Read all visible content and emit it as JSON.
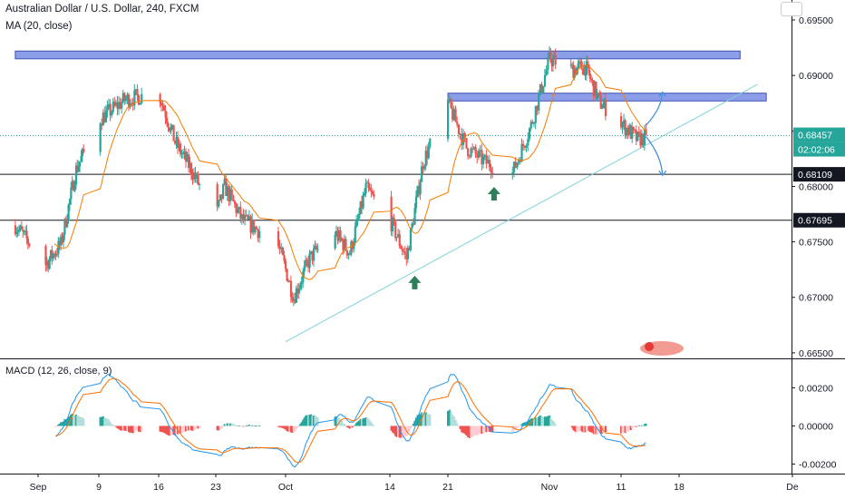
{
  "header": {
    "title": "Australian Dollar / U.S. Dollar, 240, FXCM",
    "ma_label": "MA (20, close)",
    "macd_label": "MACD (12, 26, close, 9)"
  },
  "price_badges": {
    "last_price": "0.68457",
    "countdown": "02:02:06",
    "level_upper": "0.68109",
    "level_lower": "0.67695"
  },
  "colors": {
    "up": "#26a69a",
    "down": "#ef5350",
    "ma": "#f57c00",
    "macd_line": "#2196f3",
    "signal_line": "#ff6d00",
    "trendline": "#7fd3d6",
    "zone_fill": "#8c9ee8",
    "zone_border": "#3f51b5",
    "arrow_up": "#2e7d5b",
    "projection": "#4a90d9",
    "badge_dark": "#131722",
    "badge_last": "#26a69a"
  },
  "chart_data": [
    {
      "type": "candlestick",
      "title": "Australian Dollar / U.S. Dollar, 240, FXCM",
      "x_tick_labels": [
        "Sep",
        "9",
        "16",
        "23",
        "Oct",
        "14",
        "21",
        "Nov",
        "11",
        "18",
        "De"
      ],
      "y_tick_labels": [
        "0.69500",
        "0.69000",
        "0.68500",
        "0.68000",
        "0.67500",
        "0.67000",
        "0.66500"
      ],
      "ylim": [
        0.6645,
        0.6968
      ],
      "anchors": [
        [
          "Aug 29",
          0.6765
        ],
        [
          "Sep 2",
          0.673
        ],
        [
          "Sep 4",
          0.6748
        ],
        [
          "Sep 6",
          0.6815
        ],
        [
          "Sep 9",
          0.686
        ],
        [
          "Sep 12",
          0.6878
        ],
        [
          "Sep 16",
          0.6885
        ],
        [
          "Sep 18",
          0.684
        ],
        [
          "Sep 20",
          0.6815
        ],
        [
          "Sep 23",
          0.6772
        ],
        [
          "Sep 24",
          0.68
        ],
        [
          "Sep 26",
          0.677
        ],
        [
          "Sep 30",
          0.675
        ],
        [
          "Oct 2",
          0.67
        ],
        [
          "Oct 4",
          0.6735
        ],
        [
          "Oct 7",
          0.676
        ],
        [
          "Oct 9",
          0.674
        ],
        [
          "Oct 11",
          0.6798
        ],
        [
          "Oct 14",
          0.677
        ],
        [
          "Oct 16",
          0.6735
        ],
        [
          "Oct 18",
          0.6822
        ],
        [
          "Oct 21",
          0.6875
        ],
        [
          "Oct 23",
          0.6835
        ],
        [
          "Oct 25",
          0.6822
        ],
        [
          "Oct 28",
          0.6812
        ],
        [
          "Oct 30",
          0.6855
        ],
        [
          "Nov 1",
          0.6915
        ],
        [
          "Nov 4",
          0.6905
        ],
        [
          "Nov 6",
          0.6908
        ],
        [
          "Nov 8",
          0.6876
        ],
        [
          "Nov 11",
          0.6857
        ],
        [
          "Nov 13",
          0.6842
        ],
        [
          "Nov 14",
          0.6845
        ]
      ],
      "moving_average": {
        "label": "MA (20, close)",
        "period": 20
      },
      "last_price": 0.68457,
      "horizontal_levels": [
        0.68109,
        0.67695
      ],
      "resistance_zones": [
        {
          "from": "Aug 29",
          "to": "Nov 25",
          "low": 0.6915,
          "high": 0.6922
        },
        {
          "from": "Oct 21",
          "to": "Nov 28",
          "low": 0.6877,
          "high": 0.6884
        }
      ],
      "trendline": {
        "from": [
          "Oct 1",
          0.666
        ],
        "to": [
          "Nov 27",
          0.6892
        ]
      },
      "buy_markers": [
        [
          "Oct 17",
          0.6713
        ],
        [
          "Oct 26",
          0.6793
        ]
      ],
      "projections": [
        {
          "from": [
            "Nov 14",
            0.6855
          ],
          "to": [
            "Nov 16",
            0.6885
          ]
        },
        {
          "from": [
            "Nov 14",
            0.6845
          ],
          "to": [
            "Nov 16",
            0.681
          ]
        }
      ]
    },
    {
      "type": "macd",
      "title": "MACD (12, 26, close, 9)",
      "y_tick_labels": [
        "0.00200",
        "0.00000",
        "-0.00200"
      ],
      "ylim": [
        -0.0025,
        0.0034
      ],
      "params": {
        "fast": 12,
        "slow": 26,
        "signal": 9
      }
    }
  ]
}
